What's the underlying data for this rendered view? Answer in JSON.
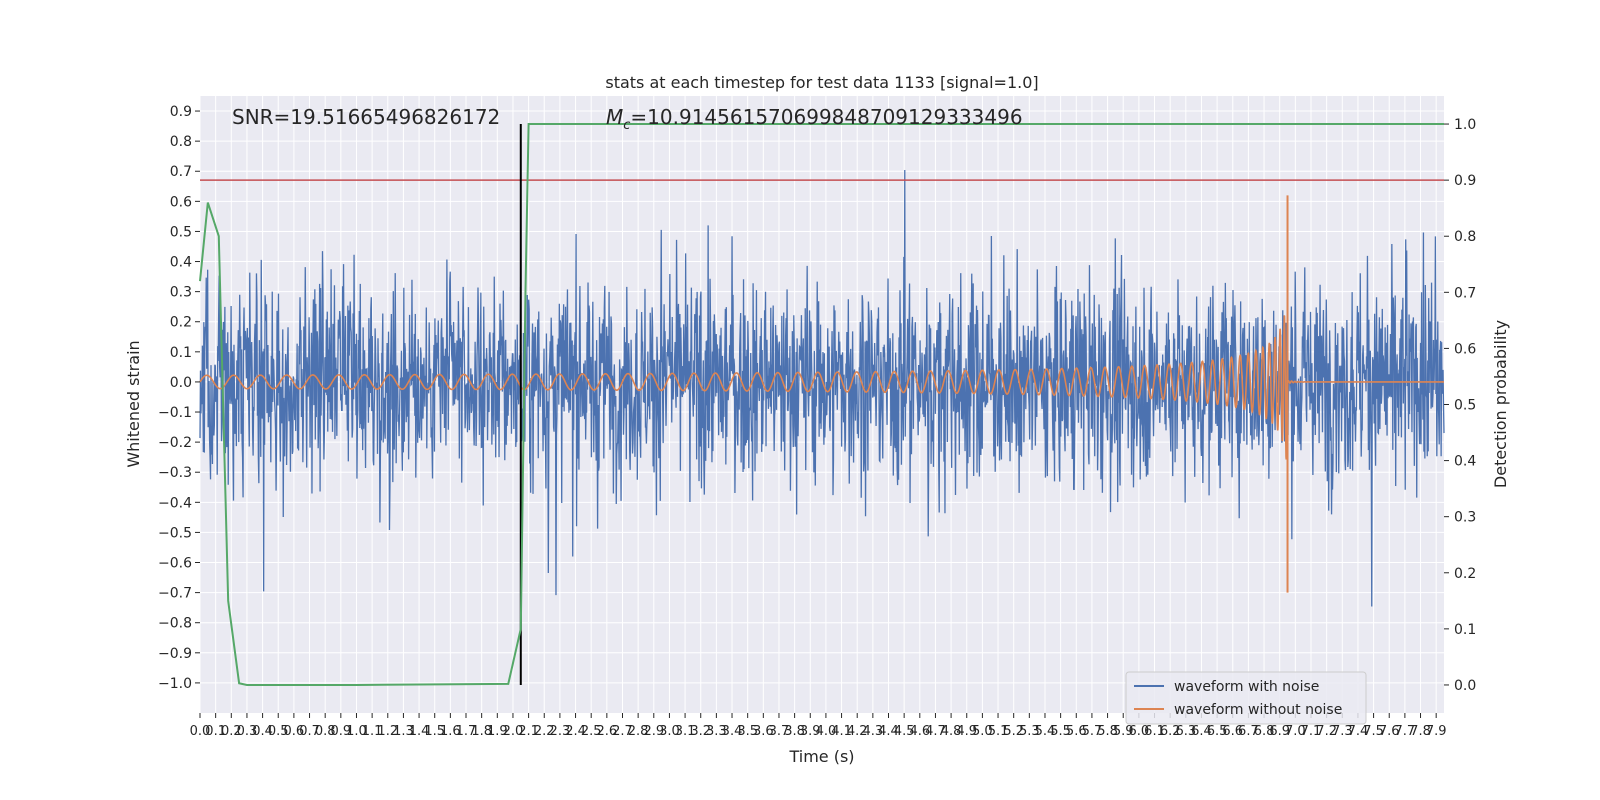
{
  "chart_data": {
    "type": "line",
    "title": "stats at each timestep for test data 1133 [signal=1.0]",
    "xlabel": "Time (s)",
    "ylabel": "Whitened strain",
    "y2label": "Detection probability",
    "xlim": [
      0.0,
      7.95
    ],
    "ylim": [
      -1.1,
      0.95
    ],
    "y2lim": [
      -0.05,
      1.05
    ],
    "xticks": [
      "0.0",
      "0.1",
      "0.2",
      "0.3",
      "0.4",
      "0.5",
      "0.6",
      "0.7",
      "0.8",
      "0.9",
      "1.0",
      "1.1",
      "1.2",
      "1.3",
      "1.4",
      "1.5",
      "1.6",
      "1.7",
      "1.8",
      "1.9",
      "2.0",
      "2.1",
      "2.2",
      "2.3",
      "2.4",
      "2.5",
      "2.6",
      "2.7",
      "2.8",
      "2.9",
      "3.0",
      "3.1",
      "3.2",
      "3.3",
      "3.4",
      "3.5",
      "3.6",
      "3.7",
      "3.8",
      "3.9",
      "4.0",
      "4.1",
      "4.2",
      "4.3",
      "4.4",
      "4.5",
      "4.6",
      "4.7",
      "4.8",
      "4.9",
      "5.0",
      "5.1",
      "5.2",
      "5.3",
      "5.4",
      "5.5",
      "5.6",
      "5.7",
      "5.8",
      "5.9",
      "6.0",
      "6.1",
      "6.2",
      "6.3",
      "6.4",
      "6.5",
      "6.6",
      "6.7",
      "6.8",
      "6.9",
      "7.0",
      "7.1",
      "7.2",
      "7.3",
      "7.4",
      "7.5",
      "7.6",
      "7.7",
      "7.8",
      "7.9"
    ],
    "yticks": [
      "0.9",
      "0.8",
      "0.7",
      "0.6",
      "0.5",
      "0.4",
      "0.3",
      "0.2",
      "0.1",
      "0.0",
      "−0.1",
      "−0.2",
      "−0.3",
      "−0.4",
      "−0.5",
      "−0.6",
      "−0.7",
      "−0.8",
      "−0.9",
      "−1.0"
    ],
    "y2ticks": [
      "1.0",
      "0.9",
      "0.8",
      "0.7",
      "0.6",
      "0.5",
      "0.4",
      "0.3",
      "0.2",
      "0.1",
      "0.0"
    ],
    "series": [
      {
        "name": "waveform with noise",
        "color": "#4c72b0",
        "noise_amplitude": 0.28,
        "seed": 1133
      },
      {
        "name": "waveform without noise",
        "color": "#dd8452",
        "merger_time": 6.95,
        "peak": 0.62,
        "trough": -0.7
      },
      {
        "name": "detection probability",
        "color": "#55a868",
        "x": [
          0.0,
          0.05,
          0.12,
          0.18,
          0.25,
          0.3,
          1.0,
          1.97,
          2.05,
          2.08,
          2.1,
          7.95
        ],
        "y": [
          0.72,
          0.86,
          0.8,
          0.15,
          0.003,
          0.0,
          0.0,
          0.002,
          0.1,
          0.7,
          1.0,
          1.0
        ]
      }
    ],
    "threshold": {
      "value": 0.9,
      "color": "#c44e52"
    },
    "marker": {
      "x": 2.05,
      "color": "#000000"
    },
    "annotations": {
      "snr": "SNR=19.51665496826172",
      "mc": "=10.914561570699848709129333496",
      "mc_symbol": "M",
      "mc_sub": "c"
    },
    "legend_position": "lower-right"
  }
}
